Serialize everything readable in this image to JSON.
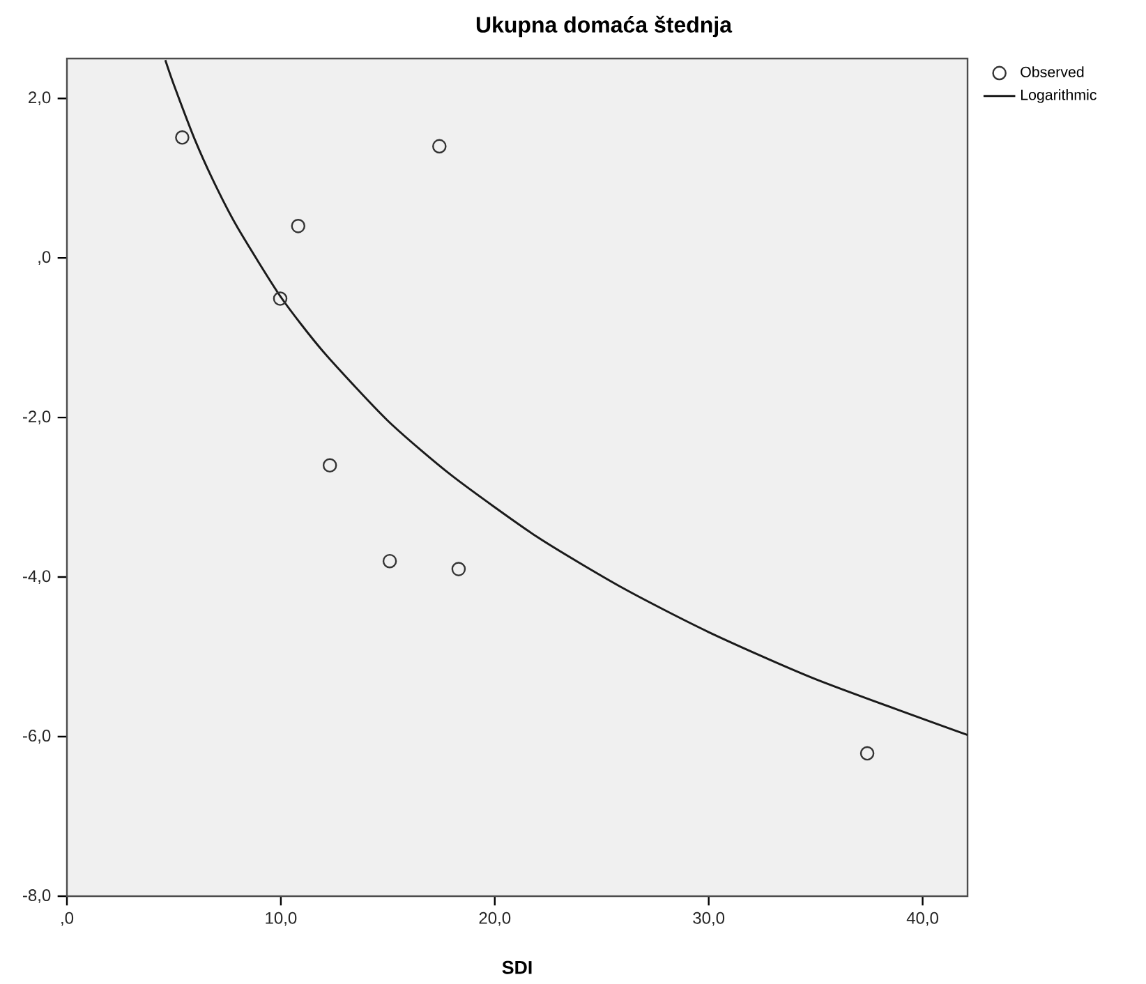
{
  "chart_data": {
    "type": "scatter",
    "title": "Ukupna domaća štednja",
    "xlabel": "SDI",
    "xlim": [
      0,
      42.1
    ],
    "ylim": [
      -8,
      2.5
    ],
    "xticks": [
      {
        "value": 0,
        "label": ",0"
      },
      {
        "value": 10,
        "label": "10,0"
      },
      {
        "value": 20,
        "label": "20,0"
      },
      {
        "value": 30,
        "label": "30,0"
      },
      {
        "value": 40,
        "label": "40,0"
      }
    ],
    "yticks": [
      {
        "value": -8,
        "label": "-8,0"
      },
      {
        "value": -6,
        "label": "-6,0"
      },
      {
        "value": -4,
        "label": "-4,0"
      },
      {
        "value": -2,
        "label": "-2,0"
      },
      {
        "value": 0,
        "label": ",0"
      },
      {
        "value": 2,
        "label": "2,0"
      }
    ],
    "legend": "top right",
    "grid": false,
    "series": [
      {
        "name": "Observed",
        "marker": "circle",
        "color": "#333333",
        "x": [
          5.39,
          10.81,
          17.41,
          9.97,
          12.29,
          15.09,
          18.31,
          37.41
        ],
        "values": [
          1.51,
          0.4,
          1.4,
          -0.51,
          -2.6,
          -3.8,
          -3.9,
          -6.21
        ]
      },
      {
        "name": "Logarithmic",
        "type": "line",
        "marker": "none",
        "line_style": "solid",
        "color": "#1a1a1a",
        "x": [
          4.6,
          5,
          6,
          7,
          8,
          10,
          12,
          15,
          18,
          22,
          26,
          30,
          35,
          42.1
        ],
        "values": [
          2.48,
          2.17,
          1.47,
          0.88,
          0.37,
          -0.49,
          -1.18,
          -2.04,
          -2.73,
          -3.5,
          -4.14,
          -4.69,
          -5.28,
          -5.98
        ]
      }
    ]
  }
}
